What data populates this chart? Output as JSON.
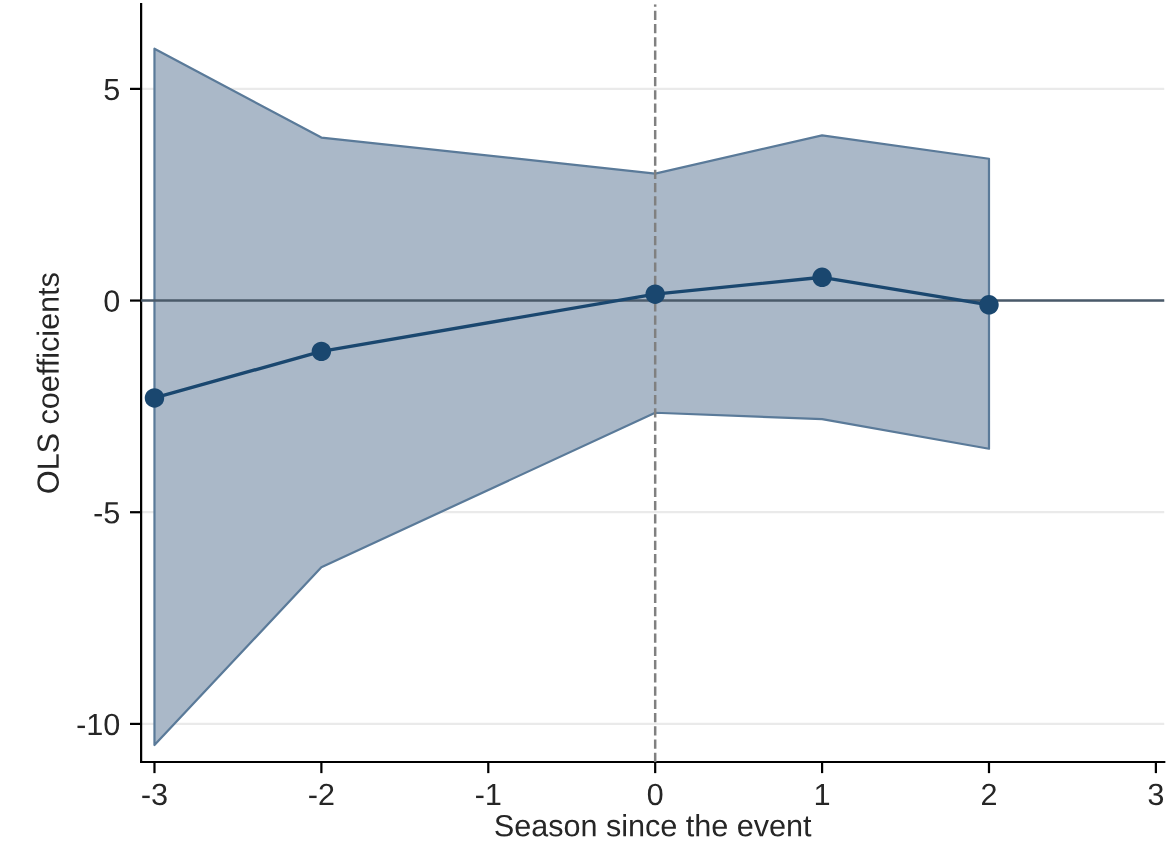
{
  "chart_data": {
    "type": "line",
    "xlabel": "Season since the event",
    "ylabel": "OLS coefficients",
    "x": [
      -3,
      -2,
      0,
      1,
      2
    ],
    "series": [
      {
        "color": "#1a476f",
        "values": [
          -2.3,
          -1.2,
          0.15,
          0.55,
          -0.1
        ],
        "lower": [
          -10.5,
          -6.3,
          -2.65,
          -2.8,
          -3.5
        ],
        "upper": [
          5.95,
          3.85,
          3.0,
          3.9,
          3.35
        ]
      }
    ],
    "xlim": [
      -3.08,
      3.05
    ],
    "ylim": [
      -10.9,
      7.0
    ],
    "xticks": [
      -3,
      -2,
      -1,
      0,
      1,
      2,
      3
    ],
    "yticks": [
      -10,
      -5,
      0,
      5
    ],
    "ref_lines": [
      {
        "axis": "y",
        "value": 0,
        "color": "#4a5a6a",
        "line_style": "solid"
      },
      {
        "axis": "x",
        "value": 0,
        "color": "#808080",
        "line_style": "dashed"
      }
    ],
    "grid": "y",
    "marker": "circle",
    "line_style": "solid",
    "legend": false
  }
}
